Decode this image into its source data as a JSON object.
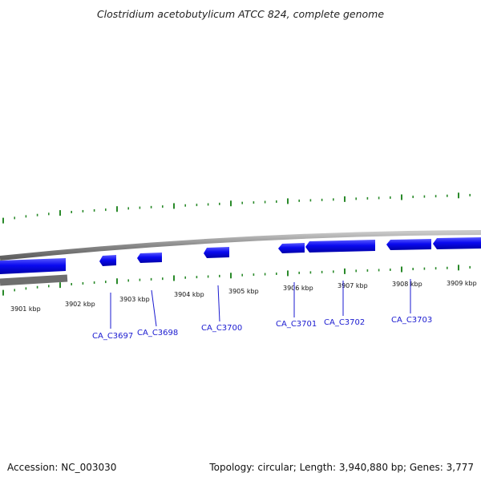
{
  "title": "Clostridium acetobutylicum ATCC 824, complete genome",
  "footer": {
    "accession": "Accession: NC_003030",
    "summary": "Topology: circular; Length: 3,940,880 bp; Genes: 3,777"
  },
  "colors": {
    "gene_fill": "#0a0af0",
    "gene_label": "#1a1ad0",
    "tick": "#2a8a2a",
    "backbone": "#8c8c8c"
  },
  "kbp_labels": [
    "3901 kbp",
    "3902 kbp",
    "3903 kbp",
    "3904 kbp",
    "3905 kbp",
    "3906 kbp",
    "3907 kbp",
    "3908 kbp",
    "3909 kbp"
  ],
  "genes": [
    "CA_C3697",
    "CA_C3698",
    "CA_C3700",
    "CA_C3701",
    "CA_C3702",
    "CA_C3703"
  ]
}
